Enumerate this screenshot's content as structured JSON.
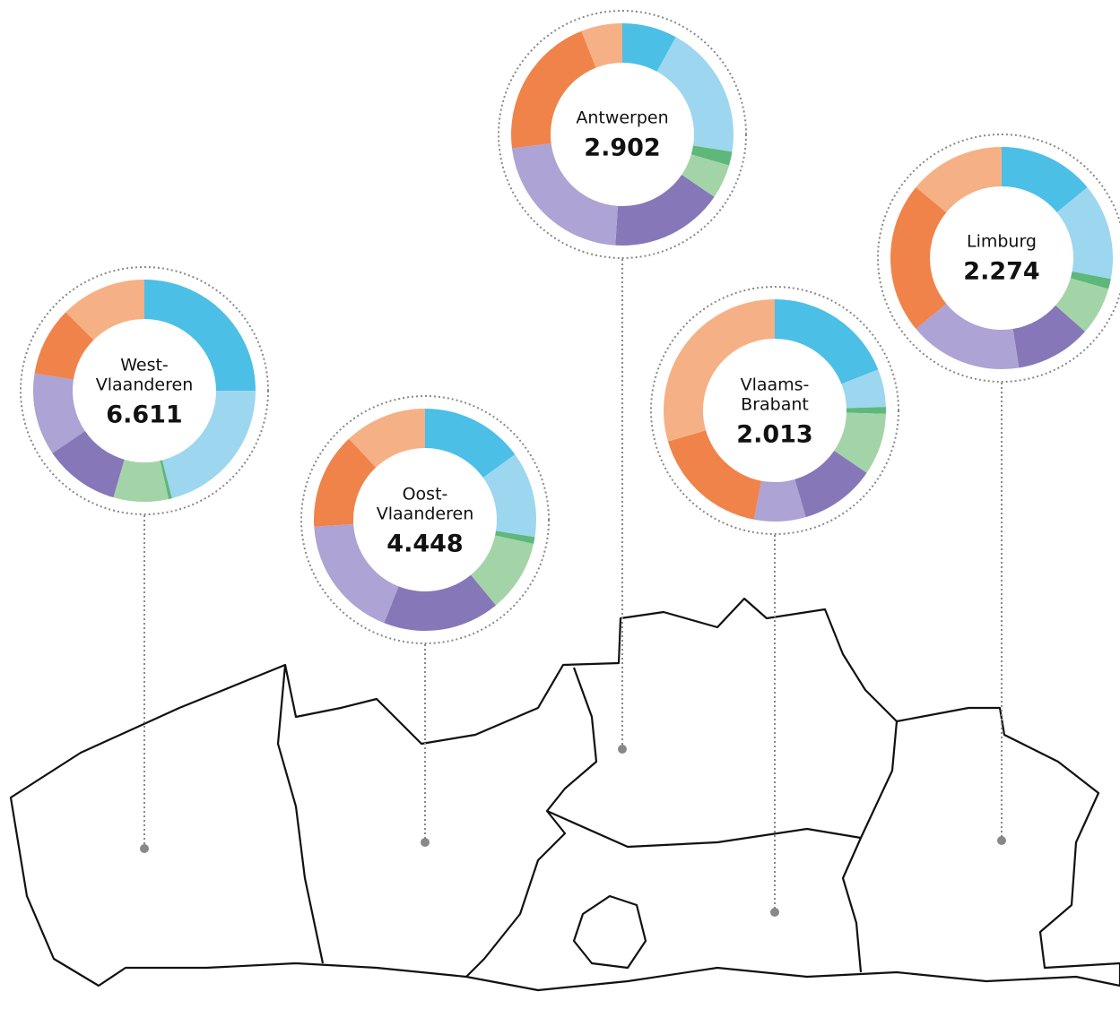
{
  "segment_colors": [
    "#4bbfe6",
    "#9dd6ef",
    "#5db87a",
    "#a3d4a8",
    "#8677b8",
    "#ada3d4",
    "#f0834a",
    "#f6b085"
  ],
  "provinces": [
    {
      "name_lines": [
        "West-",
        "Vlaanderen"
      ],
      "total": "6.611",
      "shares": [
        25,
        21,
        0.5,
        8,
        11,
        12,
        10,
        12.5
      ]
    },
    {
      "name_lines": [
        "Oost-",
        "Vlaanderen"
      ],
      "total": "4.448",
      "shares": [
        15,
        12.5,
        1,
        10.5,
        17,
        18,
        14,
        12
      ]
    },
    {
      "name_lines": [
        "Antwerpen"
      ],
      "total": "2.902",
      "shares": [
        8,
        19.5,
        2,
        5,
        16.5,
        22,
        21,
        6
      ]
    },
    {
      "name_lines": [
        "Vlaams-",
        "Brabant"
      ],
      "total": "2.013",
      "shares": [
        19,
        5.5,
        1,
        9,
        11,
        7.5,
        17.5,
        29.5
      ]
    },
    {
      "name_lines": [
        "Limburg"
      ],
      "total": "2.274",
      "shares": [
        14,
        14,
        1.5,
        7,
        11,
        16.5,
        22,
        14
      ]
    }
  ]
}
